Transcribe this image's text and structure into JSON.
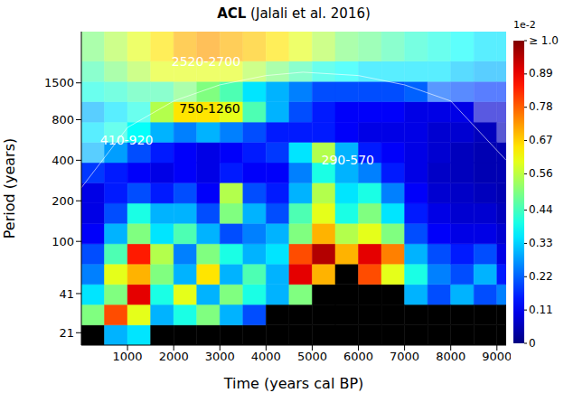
{
  "chart_data": {
    "type": "heatmap",
    "title": "ACL (Jalali et al. 2016)",
    "x_label": "Time (years cal BP)",
    "y_label": "Period (years)",
    "xlim": [
      0,
      9200
    ],
    "xticks": [
      1000,
      2000,
      3000,
      4000,
      5000,
      6000,
      7000,
      8000,
      9000
    ],
    "ylim": [
      17,
      3600
    ],
    "yticks": [
      21,
      41,
      100,
      200,
      400,
      800,
      1500
    ],
    "log": "y",
    "grid": false,
    "time_bins": [
      0,
      500,
      1000,
      1500,
      2000,
      2500,
      3000,
      3500,
      4000,
      4500,
      5000,
      5500,
      6000,
      6500,
      7000,
      7500,
      8000,
      8500,
      9000,
      9200
    ],
    "period_bins": [
      17,
      24,
      34,
      48,
      68,
      96,
      136,
      192,
      272,
      384,
      544,
      768,
      1088,
      1536,
      2176,
      3600
    ],
    "cells": [
      [
        null,
        0.3,
        0.35,
        null,
        null,
        null,
        null,
        null,
        null,
        null,
        null,
        null,
        null,
        null,
        null,
        null,
        null,
        null,
        null
      ],
      [
        0.5,
        0.8,
        0.6,
        0.3,
        0.4,
        0.5,
        0.3,
        0.2,
        null,
        null,
        null,
        null,
        null,
        null,
        null,
        null,
        null,
        null,
        null
      ],
      [
        0.35,
        0.5,
        0.9,
        0.4,
        0.6,
        0.3,
        0.5,
        0.4,
        0.3,
        0.5,
        null,
        null,
        null,
        null,
        0.3,
        0.2,
        0.3,
        0.2,
        0.25
      ],
      [
        0.25,
        0.6,
        0.7,
        0.5,
        0.3,
        0.65,
        0.3,
        0.45,
        0.3,
        0.9,
        0.7,
        null,
        0.8,
        0.6,
        0.4,
        0.25,
        0.2,
        0.3,
        0.15
      ],
      [
        0.2,
        0.45,
        0.85,
        0.55,
        0.25,
        0.5,
        0.4,
        0.3,
        0.35,
        0.8,
        0.95,
        0.7,
        0.9,
        0.75,
        0.3,
        0.2,
        0.15,
        0.2,
        0.1
      ],
      [
        0.12,
        0.3,
        0.5,
        0.35,
        0.45,
        0.3,
        0.2,
        0.25,
        0.3,
        0.5,
        0.7,
        0.55,
        0.6,
        0.5,
        0.2,
        0.12,
        0.1,
        0.1,
        0.08
      ],
      [
        0.1,
        0.2,
        0.4,
        0.3,
        0.3,
        0.2,
        0.5,
        0.3,
        0.2,
        0.45,
        0.6,
        0.4,
        0.5,
        0.35,
        0.15,
        0.1,
        0.08,
        0.08,
        0.06
      ],
      [
        0.1,
        0.15,
        0.2,
        0.15,
        0.2,
        0.12,
        0.55,
        0.2,
        0.15,
        0.3,
        0.55,
        0.35,
        0.4,
        0.25,
        0.12,
        0.08,
        0.07,
        0.06,
        0.05
      ],
      [
        0.18,
        0.15,
        0.12,
        0.1,
        0.12,
        0.1,
        0.15,
        0.12,
        0.12,
        0.25,
        0.4,
        0.3,
        0.25,
        0.15,
        0.1,
        0.07,
        0.06,
        0.05,
        0.05
      ],
      [
        0.3,
        0.28,
        0.2,
        0.15,
        0.12,
        0.1,
        0.12,
        0.15,
        0.18,
        0.35,
        0.55,
        0.3,
        0.15,
        0.12,
        0.1,
        0.08,
        0.06,
        0.05,
        0.05
      ],
      [
        0.35,
        0.4,
        0.38,
        0.3,
        0.25,
        0.3,
        0.25,
        0.2,
        0.15,
        0.15,
        0.15,
        0.12,
        0.1,
        0.1,
        0.1,
        0.08,
        0.08,
        0.06,
        0.06
      ],
      [
        0.3,
        0.35,
        0.4,
        0.55,
        0.65,
        0.65,
        0.6,
        0.45,
        0.3,
        0.2,
        0.15,
        0.12,
        0.12,
        0.12,
        0.1,
        0.1,
        0.1,
        0.08,
        0.08
      ],
      [
        0.4,
        0.42,
        0.45,
        0.45,
        0.5,
        0.5,
        0.45,
        0.35,
        0.3,
        0.25,
        0.2,
        0.2,
        0.2,
        0.2,
        0.22,
        0.22,
        0.2,
        0.18,
        0.18
      ],
      [
        0.45,
        0.5,
        0.55,
        0.6,
        0.6,
        0.6,
        0.6,
        0.55,
        0.5,
        0.45,
        0.4,
        0.38,
        0.35,
        0.35,
        0.35,
        0.35,
        0.32,
        0.3,
        0.3
      ],
      [
        0.5,
        0.55,
        0.6,
        0.65,
        0.7,
        0.72,
        0.7,
        0.68,
        0.65,
        0.6,
        0.55,
        0.5,
        0.48,
        0.45,
        0.42,
        0.4,
        0.38,
        0.35,
        0.35
      ]
    ],
    "cone_of_influence": {
      "x": [
        0,
        1000,
        2000,
        3000,
        4000,
        4800,
        6000,
        7000,
        8000,
        9200
      ],
      "period": [
        250,
        700,
        1100,
        1450,
        1700,
        1800,
        1700,
        1450,
        1100,
        400
      ]
    },
    "colorbar": {
      "label": "1e-2",
      "range": [
        0,
        1.0
      ],
      "ticks": [
        0,
        0.11,
        0.22,
        0.33,
        0.44,
        0.56,
        0.67,
        0.78,
        0.89,
        {
          "value": 1.0,
          "label": "≥ 1.0"
        }
      ]
    },
    "annotations": [
      {
        "text": "2520-2700",
        "x": 2700,
        "y": 2150,
        "color": "#ffffff"
      },
      {
        "text": "750-1260",
        "x": 2780,
        "y": 970,
        "color": "#000000"
      },
      {
        "text": "410-920",
        "x": 980,
        "y": 566,
        "color": "#ffffff"
      },
      {
        "text": "290-570",
        "x": 5770,
        "y": 400,
        "color": "#ffffff"
      }
    ]
  }
}
